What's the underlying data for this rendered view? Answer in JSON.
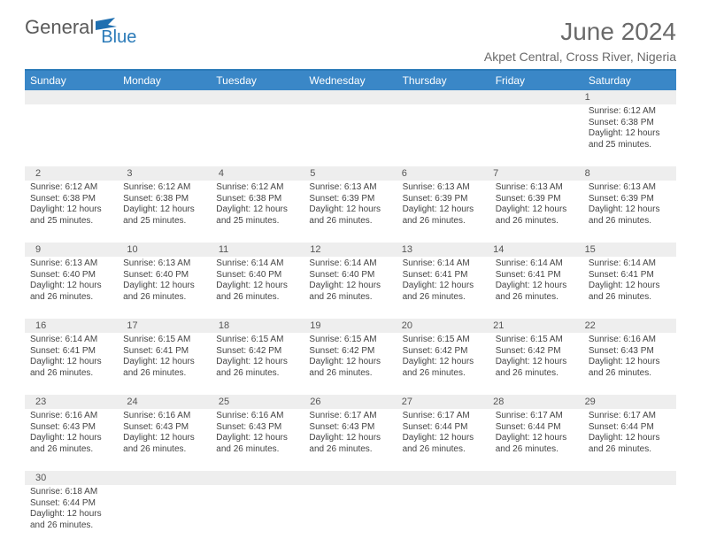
{
  "logo": {
    "general": "General",
    "blue": "Blue"
  },
  "header": {
    "month_title": "June 2024",
    "location": "Akpet Central, Cross River, Nigeria"
  },
  "day_names": [
    "Sunday",
    "Monday",
    "Tuesday",
    "Wednesday",
    "Thursday",
    "Friday",
    "Saturday"
  ],
  "colors": {
    "header_bar": "#3a87c7",
    "rule": "#2a7ab8",
    "daynum_bg": "#eeeeee",
    "text": "#444444"
  },
  "weeks": [
    [
      null,
      null,
      null,
      null,
      null,
      null,
      {
        "n": "1",
        "sr": "Sunrise: 6:12 AM",
        "ss": "Sunset: 6:38 PM",
        "d1": "Daylight: 12 hours",
        "d2": "and 25 minutes."
      }
    ],
    [
      {
        "n": "2",
        "sr": "Sunrise: 6:12 AM",
        "ss": "Sunset: 6:38 PM",
        "d1": "Daylight: 12 hours",
        "d2": "and 25 minutes."
      },
      {
        "n": "3",
        "sr": "Sunrise: 6:12 AM",
        "ss": "Sunset: 6:38 PM",
        "d1": "Daylight: 12 hours",
        "d2": "and 25 minutes."
      },
      {
        "n": "4",
        "sr": "Sunrise: 6:12 AM",
        "ss": "Sunset: 6:38 PM",
        "d1": "Daylight: 12 hours",
        "d2": "and 25 minutes."
      },
      {
        "n": "5",
        "sr": "Sunrise: 6:13 AM",
        "ss": "Sunset: 6:39 PM",
        "d1": "Daylight: 12 hours",
        "d2": "and 26 minutes."
      },
      {
        "n": "6",
        "sr": "Sunrise: 6:13 AM",
        "ss": "Sunset: 6:39 PM",
        "d1": "Daylight: 12 hours",
        "d2": "and 26 minutes."
      },
      {
        "n": "7",
        "sr": "Sunrise: 6:13 AM",
        "ss": "Sunset: 6:39 PM",
        "d1": "Daylight: 12 hours",
        "d2": "and 26 minutes."
      },
      {
        "n": "8",
        "sr": "Sunrise: 6:13 AM",
        "ss": "Sunset: 6:39 PM",
        "d1": "Daylight: 12 hours",
        "d2": "and 26 minutes."
      }
    ],
    [
      {
        "n": "9",
        "sr": "Sunrise: 6:13 AM",
        "ss": "Sunset: 6:40 PM",
        "d1": "Daylight: 12 hours",
        "d2": "and 26 minutes."
      },
      {
        "n": "10",
        "sr": "Sunrise: 6:13 AM",
        "ss": "Sunset: 6:40 PM",
        "d1": "Daylight: 12 hours",
        "d2": "and 26 minutes."
      },
      {
        "n": "11",
        "sr": "Sunrise: 6:14 AM",
        "ss": "Sunset: 6:40 PM",
        "d1": "Daylight: 12 hours",
        "d2": "and 26 minutes."
      },
      {
        "n": "12",
        "sr": "Sunrise: 6:14 AM",
        "ss": "Sunset: 6:40 PM",
        "d1": "Daylight: 12 hours",
        "d2": "and 26 minutes."
      },
      {
        "n": "13",
        "sr": "Sunrise: 6:14 AM",
        "ss": "Sunset: 6:41 PM",
        "d1": "Daylight: 12 hours",
        "d2": "and 26 minutes."
      },
      {
        "n": "14",
        "sr": "Sunrise: 6:14 AM",
        "ss": "Sunset: 6:41 PM",
        "d1": "Daylight: 12 hours",
        "d2": "and 26 minutes."
      },
      {
        "n": "15",
        "sr": "Sunrise: 6:14 AM",
        "ss": "Sunset: 6:41 PM",
        "d1": "Daylight: 12 hours",
        "d2": "and 26 minutes."
      }
    ],
    [
      {
        "n": "16",
        "sr": "Sunrise: 6:14 AM",
        "ss": "Sunset: 6:41 PM",
        "d1": "Daylight: 12 hours",
        "d2": "and 26 minutes."
      },
      {
        "n": "17",
        "sr": "Sunrise: 6:15 AM",
        "ss": "Sunset: 6:41 PM",
        "d1": "Daylight: 12 hours",
        "d2": "and 26 minutes."
      },
      {
        "n": "18",
        "sr": "Sunrise: 6:15 AM",
        "ss": "Sunset: 6:42 PM",
        "d1": "Daylight: 12 hours",
        "d2": "and 26 minutes."
      },
      {
        "n": "19",
        "sr": "Sunrise: 6:15 AM",
        "ss": "Sunset: 6:42 PM",
        "d1": "Daylight: 12 hours",
        "d2": "and 26 minutes."
      },
      {
        "n": "20",
        "sr": "Sunrise: 6:15 AM",
        "ss": "Sunset: 6:42 PM",
        "d1": "Daylight: 12 hours",
        "d2": "and 26 minutes."
      },
      {
        "n": "21",
        "sr": "Sunrise: 6:15 AM",
        "ss": "Sunset: 6:42 PM",
        "d1": "Daylight: 12 hours",
        "d2": "and 26 minutes."
      },
      {
        "n": "22",
        "sr": "Sunrise: 6:16 AM",
        "ss": "Sunset: 6:43 PM",
        "d1": "Daylight: 12 hours",
        "d2": "and 26 minutes."
      }
    ],
    [
      {
        "n": "23",
        "sr": "Sunrise: 6:16 AM",
        "ss": "Sunset: 6:43 PM",
        "d1": "Daylight: 12 hours",
        "d2": "and 26 minutes."
      },
      {
        "n": "24",
        "sr": "Sunrise: 6:16 AM",
        "ss": "Sunset: 6:43 PM",
        "d1": "Daylight: 12 hours",
        "d2": "and 26 minutes."
      },
      {
        "n": "25",
        "sr": "Sunrise: 6:16 AM",
        "ss": "Sunset: 6:43 PM",
        "d1": "Daylight: 12 hours",
        "d2": "and 26 minutes."
      },
      {
        "n": "26",
        "sr": "Sunrise: 6:17 AM",
        "ss": "Sunset: 6:43 PM",
        "d1": "Daylight: 12 hours",
        "d2": "and 26 minutes."
      },
      {
        "n": "27",
        "sr": "Sunrise: 6:17 AM",
        "ss": "Sunset: 6:44 PM",
        "d1": "Daylight: 12 hours",
        "d2": "and 26 minutes."
      },
      {
        "n": "28",
        "sr": "Sunrise: 6:17 AM",
        "ss": "Sunset: 6:44 PM",
        "d1": "Daylight: 12 hours",
        "d2": "and 26 minutes."
      },
      {
        "n": "29",
        "sr": "Sunrise: 6:17 AM",
        "ss": "Sunset: 6:44 PM",
        "d1": "Daylight: 12 hours",
        "d2": "and 26 minutes."
      }
    ],
    [
      {
        "n": "30",
        "sr": "Sunrise: 6:18 AM",
        "ss": "Sunset: 6:44 PM",
        "d1": "Daylight: 12 hours",
        "d2": "and 26 minutes."
      },
      null,
      null,
      null,
      null,
      null,
      null
    ]
  ]
}
